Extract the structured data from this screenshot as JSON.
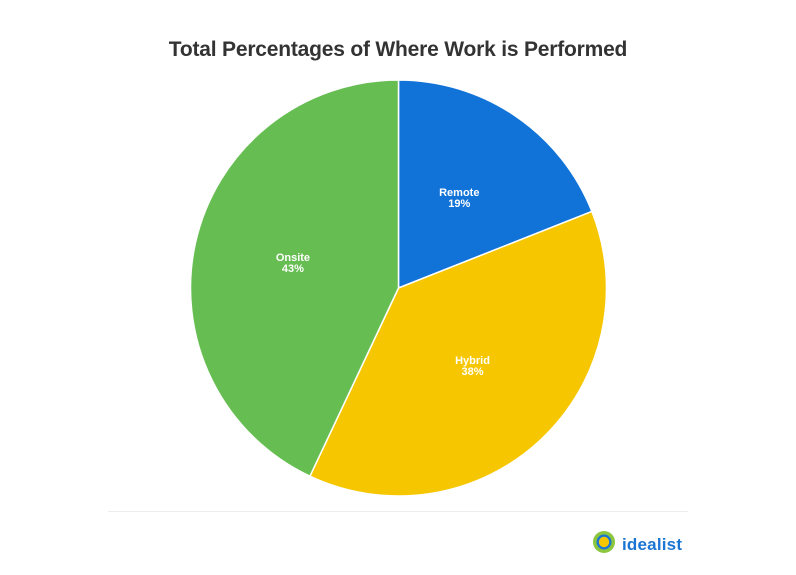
{
  "chart_data": {
    "type": "pie",
    "title": "Total Percentages of Where Work is Performed",
    "categories": [
      "Remote",
      "Hybrid",
      "Onsite"
    ],
    "values": [
      19,
      38,
      43
    ],
    "unit": "%",
    "colors": [
      "#1173d8",
      "#f6c700",
      "#66bd51"
    ],
    "start_angle_deg": 0,
    "direction": "clockwise",
    "legend": "none",
    "data_labels": [
      "Remote\n19%",
      "Hybrid\n38%",
      "Onsite\n43%"
    ]
  },
  "chart": {
    "title": "Total Percentages of Where Work is Performed",
    "slices": [
      {
        "name": "Remote",
        "percent": "19%",
        "color": "#1173d8"
      },
      {
        "name": "Hybrid",
        "percent": "38%",
        "color": "#f6c700"
      },
      {
        "name": "Onsite",
        "percent": "43%",
        "color": "#66bd51"
      }
    ]
  },
  "footer": {
    "brand_name": "idealist",
    "brand_color": "#1b76d3"
  }
}
